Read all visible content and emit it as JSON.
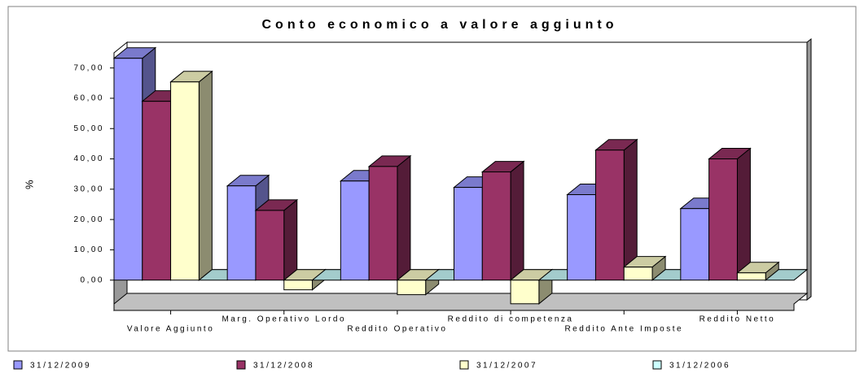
{
  "chart_data": {
    "type": "bar3d",
    "title": "Conto economico a valore aggiunto",
    "y_label": "%",
    "categories": [
      "Valore Aggiunto",
      "Marg. Operativo Lordo",
      "Reddito Operativo",
      "Reddito di competenza",
      "Reddito Ante Imposte",
      "Reddito Netto"
    ],
    "series": [
      {
        "name": "31/12/2009",
        "color": "#9999ff",
        "values": [
          73.2,
          31.1,
          32.7,
          30.6,
          28.2,
          23.6
        ]
      },
      {
        "name": "31/12/2008",
        "color": "#993366",
        "values": [
          59,
          23,
          37.5,
          35.7,
          42.9,
          40
        ]
      },
      {
        "name": "31/12/2007",
        "color": "#ffffcc",
        "values": [
          65.4,
          -3.2,
          -4.8,
          -7.8,
          4.3,
          2.4
        ]
      },
      {
        "name": "31/12/2006",
        "color": "#ccffff",
        "values": [
          0,
          0,
          0,
          0,
          0,
          0
        ]
      }
    ],
    "ylim": [
      -10,
      75
    ],
    "yticks": [
      {
        "value": 0,
        "label": "0,00"
      },
      {
        "value": 10,
        "label": "10,00"
      },
      {
        "value": 20,
        "label": "20,00"
      },
      {
        "value": 30,
        "label": "30,00"
      },
      {
        "value": 40,
        "label": "40,00"
      },
      {
        "value": 50,
        "label": "50,00"
      },
      {
        "value": 60,
        "label": "60,00"
      },
      {
        "value": 70,
        "label": "70,00"
      }
    ],
    "legend": "bottom"
  }
}
